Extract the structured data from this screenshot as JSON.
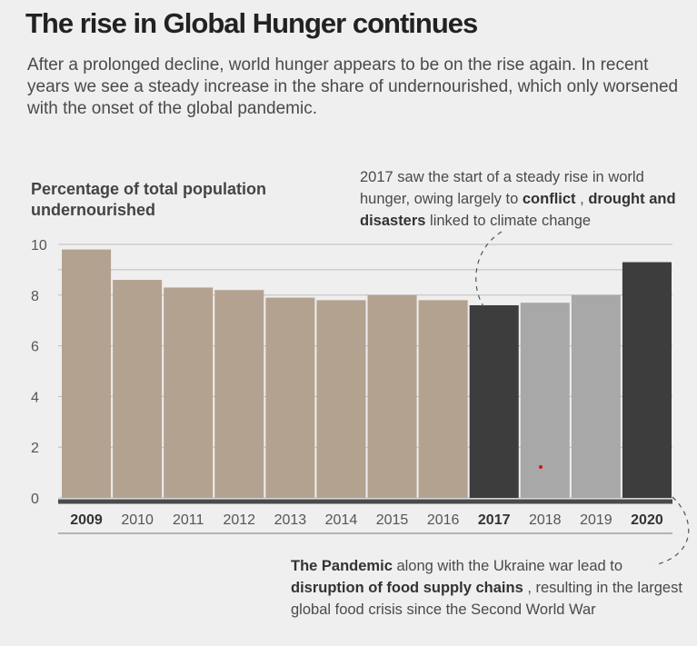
{
  "header": {
    "title": "The rise in Global Hunger continues",
    "subtitle": "After a prolonged decline, world hunger appears to be on the rise again. In recent years we see a steady increase in the share of undernourished, which only worsened with the onset of the global pandemic."
  },
  "annotations": {
    "top": {
      "text1": "2017 saw the start of a steady rise in world hunger, owing largely to ",
      "bold1": "conflict",
      "text2": " , ",
      "bold2": "drought and disasters",
      "text3": " linked to climate change"
    },
    "bottom": {
      "bold1": "The Pandemic",
      "text1": " along with the Ukraine war lead to ",
      "bold2": "disruption of food supply chains",
      "text2": " , resulting in the largest global food crisis since the Second World War"
    }
  },
  "colors": {
    "decline": "#b4a291",
    "rise": "#3d3d3d",
    "pandemic": "#a8a8a8",
    "grid": "#bdbdbd",
    "axis": "#4a4a4a"
  },
  "chart_data": {
    "type": "bar",
    "ylabel": "Percentage of total population undernourished",
    "ylim": [
      0,
      10
    ],
    "yticks": [
      0,
      2,
      4,
      6,
      8,
      10
    ],
    "grid": true,
    "categories": [
      "2009",
      "2010",
      "2011",
      "2012",
      "2013",
      "2014",
      "2015",
      "2016",
      "2017",
      "2018",
      "2019",
      "2020"
    ],
    "values": [
      9.8,
      8.6,
      8.3,
      8.2,
      7.9,
      7.8,
      8.0,
      7.8,
      7.6,
      7.7,
      8.0,
      9.3
    ],
    "bar_color_keys": [
      "decline",
      "decline",
      "decline",
      "decline",
      "decline",
      "decline",
      "decline",
      "decline",
      "rise",
      "pandemic",
      "pandemic",
      "rise"
    ],
    "bold_categories": [
      "2009",
      "2017",
      "2020"
    ]
  }
}
